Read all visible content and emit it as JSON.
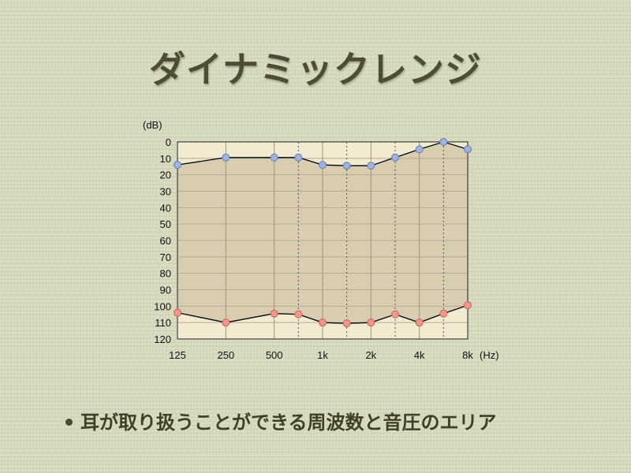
{
  "slide": {
    "title": "ダイナミックレンジ",
    "bullet": "耳が取り扱うことができる周波数と音圧のエリア"
  },
  "chart_data": {
    "type": "line",
    "ylabel": "(dB)",
    "xunit": "(Hz)",
    "y_ticks": [
      0,
      10,
      20,
      30,
      40,
      50,
      60,
      70,
      80,
      90,
      100,
      110,
      120
    ],
    "x_ticks": [
      "125",
      "250",
      "500",
      "1k",
      "2k",
      "4k",
      "8k"
    ],
    "ylim": [
      0,
      120
    ],
    "y_inverted": true,
    "x_scale": "log",
    "x": [
      125,
      250,
      500,
      707,
      1000,
      1414,
      2000,
      2828,
      4000,
      5657,
      8000
    ],
    "series": [
      {
        "values": [
          14,
          9.5,
          9.5,
          9.5,
          14,
          14.5,
          14.5,
          9.5,
          4.5,
          0,
          4.5
        ],
        "color": "#9db3e0",
        "stroke": "#6a7fae"
      },
      {
        "values": [
          104,
          110,
          104.5,
          105,
          110,
          110.5,
          110,
          105,
          110,
          104.5,
          99.5
        ],
        "color": "#f2988a",
        "stroke": "#c0665c"
      }
    ],
    "fill_colors": {
      "plot_bg": "#f3ead2",
      "between": "#d8cdb1"
    },
    "grid": true
  }
}
